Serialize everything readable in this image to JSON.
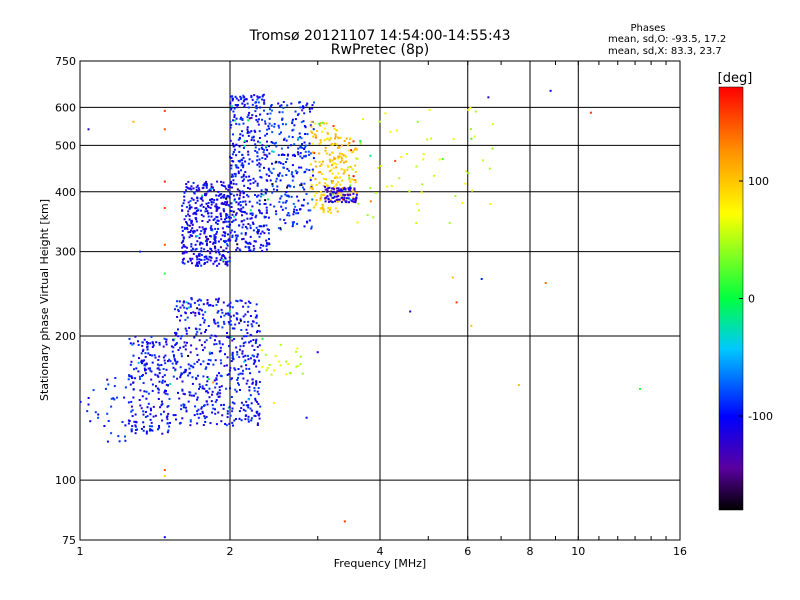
{
  "chart_data": {
    "type": "scatter",
    "title": "Tromsø 20121107 14:54:00-14:55:43",
    "subtitle": "RwPretec (8p)",
    "xlabel": "Frequency [MHz]",
    "ylabel": "Stationary phase Virtual Height [km]",
    "x_scale": "log",
    "y_scale": "log",
    "xlim": [
      1,
      16
    ],
    "ylim": [
      75,
      750
    ],
    "x_ticks": [
      1,
      2,
      4,
      6,
      8,
      10,
      16
    ],
    "y_ticks": [
      75,
      100,
      200,
      300,
      400,
      500,
      600,
      750
    ],
    "grid": true,
    "phases_header": "Phases",
    "phase_stats": [
      "mean, sd,O: -93.5, 17.2",
      "mean, sd,X:  83.3, 23.7"
    ],
    "colorbar": {
      "label": "[deg]",
      "range": [
        -180,
        180
      ],
      "ticks": [
        100,
        0,
        -100
      ]
    },
    "clusters": [
      {
        "name_hint": "E-low",
        "fmin": 1.0,
        "fmax": 1.35,
        "hmin": 120,
        "hmax": 165,
        "phase": -95,
        "n": 40
      },
      {
        "name_hint": "E-main1",
        "fmin": 1.25,
        "fmax": 1.55,
        "hmin": 125,
        "hmax": 200,
        "phase": -100,
        "n": 220
      },
      {
        "name_hint": "E-main2",
        "fmin": 1.55,
        "fmax": 2.3,
        "hmin": 130,
        "hmax": 240,
        "phase": -100,
        "n": 520
      },
      {
        "name_hint": "E-tail",
        "fmin": 2.3,
        "fmax": 2.8,
        "hmin": 160,
        "hmax": 200,
        "phase": 60,
        "n": 25
      },
      {
        "name_hint": "F-main1",
        "fmin": 1.6,
        "fmax": 2.0,
        "hmin": 280,
        "hmax": 420,
        "phase": -105,
        "n": 420
      },
      {
        "name_hint": "F-main2",
        "fmin": 2.0,
        "fmax": 2.4,
        "hmin": 300,
        "hmax": 640,
        "phase": -100,
        "n": 420
      },
      {
        "name_hint": "F-main3",
        "fmin": 2.4,
        "fmax": 2.95,
        "hmin": 330,
        "hmax": 620,
        "phase": -90,
        "n": 240
      },
      {
        "name_hint": "F-x1",
        "fmin": 2.9,
        "fmax": 3.3,
        "hmin": 360,
        "hmax": 560,
        "phase": 95,
        "n": 130
      },
      {
        "name_hint": "F-x2",
        "fmin": 3.2,
        "fmax": 3.6,
        "hmin": 380,
        "hmax": 520,
        "phase": 100,
        "n": 110
      },
      {
        "name_hint": "F-o3",
        "fmin": 3.1,
        "fmax": 3.6,
        "hmin": 380,
        "hmax": 410,
        "phase": -120,
        "n": 90
      },
      {
        "name_hint": "F-upper",
        "fmin": 3.6,
        "fmax": 6.8,
        "hmin": 340,
        "hmax": 600,
        "phase": 60,
        "n": 60
      }
    ],
    "extra_points": [
      {
        "x": 1.48,
        "y": 590,
        "phase": 160
      },
      {
        "x": 1.48,
        "y": 540,
        "phase": 150
      },
      {
        "x": 1.48,
        "y": 420,
        "phase": 170
      },
      {
        "x": 1.48,
        "y": 370,
        "phase": 160
      },
      {
        "x": 1.48,
        "y": 310,
        "phase": 150
      },
      {
        "x": 1.48,
        "y": 105,
        "phase": 150
      },
      {
        "x": 1.48,
        "y": 102,
        "phase": 90
      },
      {
        "x": 1.48,
        "y": 76,
        "phase": -100
      },
      {
        "x": 1.48,
        "y": 270,
        "phase": 10
      },
      {
        "x": 1.32,
        "y": 300,
        "phase": -90
      },
      {
        "x": 1.28,
        "y": 560,
        "phase": 110
      },
      {
        "x": 1.04,
        "y": 540,
        "phase": -120
      },
      {
        "x": 3.4,
        "y": 82,
        "phase": 160
      },
      {
        "x": 8.6,
        "y": 258,
        "phase": 140
      },
      {
        "x": 10.6,
        "y": 585,
        "phase": 160
      },
      {
        "x": 13.3,
        "y": 155,
        "phase": 10
      },
      {
        "x": 8.8,
        "y": 650,
        "phase": -100
      },
      {
        "x": 6.6,
        "y": 630,
        "phase": -120
      },
      {
        "x": 7.6,
        "y": 158,
        "phase": 100
      },
      {
        "x": 6.4,
        "y": 263,
        "phase": -90
      },
      {
        "x": 6.1,
        "y": 210,
        "phase": 100
      },
      {
        "x": 5.7,
        "y": 235,
        "phase": 160
      },
      {
        "x": 4.6,
        "y": 225,
        "phase": -120
      },
      {
        "x": 5.6,
        "y": 265,
        "phase": 100
      },
      {
        "x": 2.85,
        "y": 135,
        "phase": -100
      },
      {
        "x": 2.45,
        "y": 145,
        "phase": 80
      },
      {
        "x": 3.0,
        "y": 185,
        "phase": -110
      },
      {
        "x": 1.85,
        "y": 160,
        "phase": 120
      }
    ]
  }
}
